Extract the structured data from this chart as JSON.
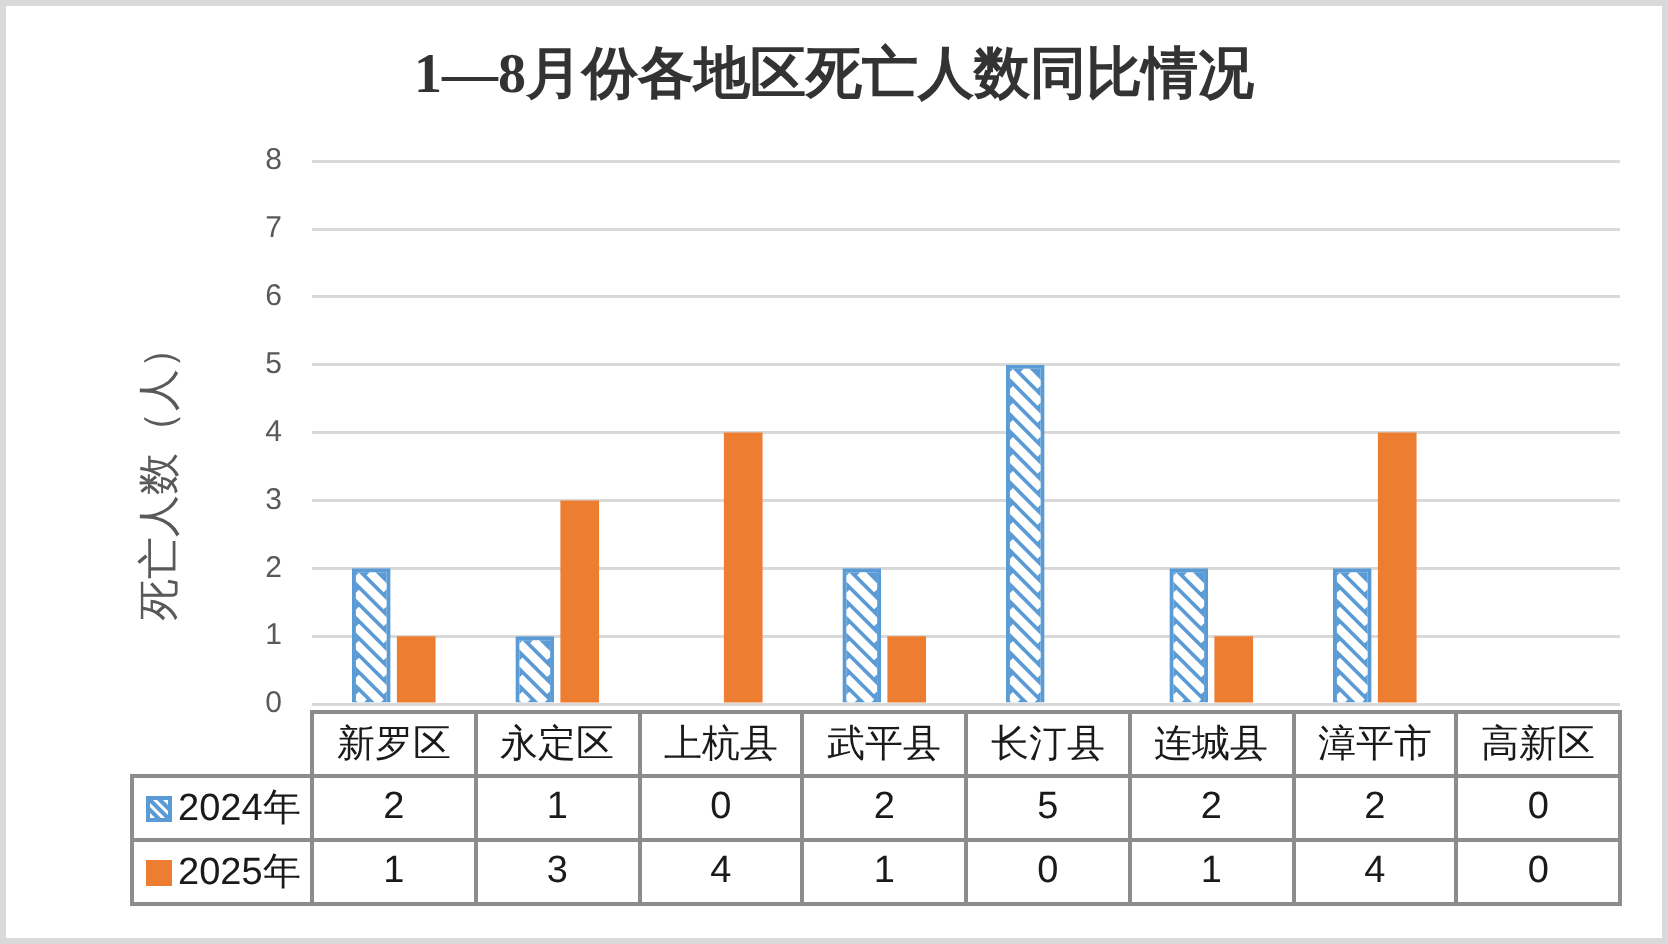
{
  "chart_data": {
    "type": "bar",
    "title": "1—8月份各地区死亡人数同比情况",
    "ylabel": "死亡人数（人）",
    "categories": [
      "新罗区",
      "永定区",
      "上杭县",
      "武平县",
      "长汀县",
      "连城县",
      "漳平市",
      "高新区"
    ],
    "series": [
      {
        "name": "2024年",
        "color": "#5b9bd5",
        "values": [
          2,
          1,
          0,
          2,
          5,
          2,
          2,
          0
        ]
      },
      {
        "name": "2025年",
        "color": "#ed7d31",
        "values": [
          1,
          3,
          4,
          1,
          0,
          1,
          4,
          0
        ]
      }
    ],
    "ylim": [
      0,
      8
    ],
    "yticks": [
      0,
      1,
      2,
      3,
      4,
      5,
      6,
      7,
      8
    ],
    "grid": "y",
    "legend": "bottom",
    "data_labels": true
  }
}
